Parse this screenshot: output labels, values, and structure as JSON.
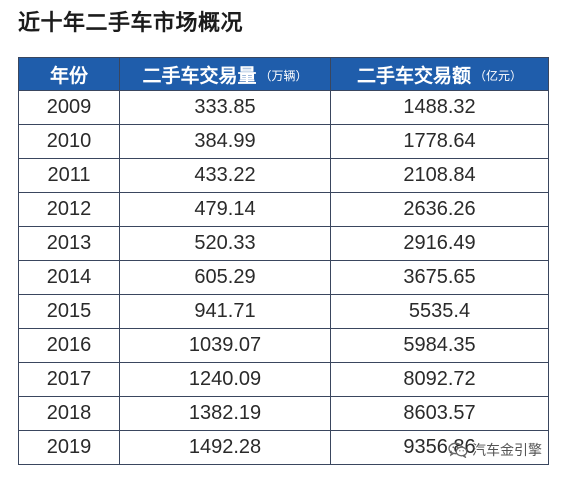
{
  "colors": {
    "header_bg": "#1f5dab",
    "header_text": "#ffffff",
    "grid": "#3a465e",
    "cell_text": "#2a2a2a",
    "title_text": "#1c1c1c",
    "watermark_text": "#555555"
  },
  "chart_data": {
    "type": "table",
    "title": "近十年二手车市场概况",
    "columns": [
      {
        "label": "年份"
      },
      {
        "label": "二手车交易量",
        "unit": "（万辆）"
      },
      {
        "label": "二手车交易额",
        "unit": "（亿元）"
      }
    ],
    "rows": [
      [
        "2009",
        "333.85",
        "1488.32"
      ],
      [
        "2010",
        "384.99",
        "1778.64"
      ],
      [
        "2011",
        "433.22",
        "2108.84"
      ],
      [
        "2012",
        "479.14",
        "2636.26"
      ],
      [
        "2013",
        "520.33",
        "2916.49"
      ],
      [
        "2014",
        "605.29",
        "3675.65"
      ],
      [
        "2015",
        "941.71",
        "5535.4"
      ],
      [
        "2016",
        "1039.07",
        "5984.35"
      ],
      [
        "2017",
        "1240.09",
        "8092.72"
      ],
      [
        "2018",
        "1382.19",
        "8603.57"
      ],
      [
        "2019",
        "1492.28",
        "9356.86"
      ]
    ]
  },
  "watermark": {
    "text": "汽车金引擎",
    "icon": "wechat-icon"
  }
}
